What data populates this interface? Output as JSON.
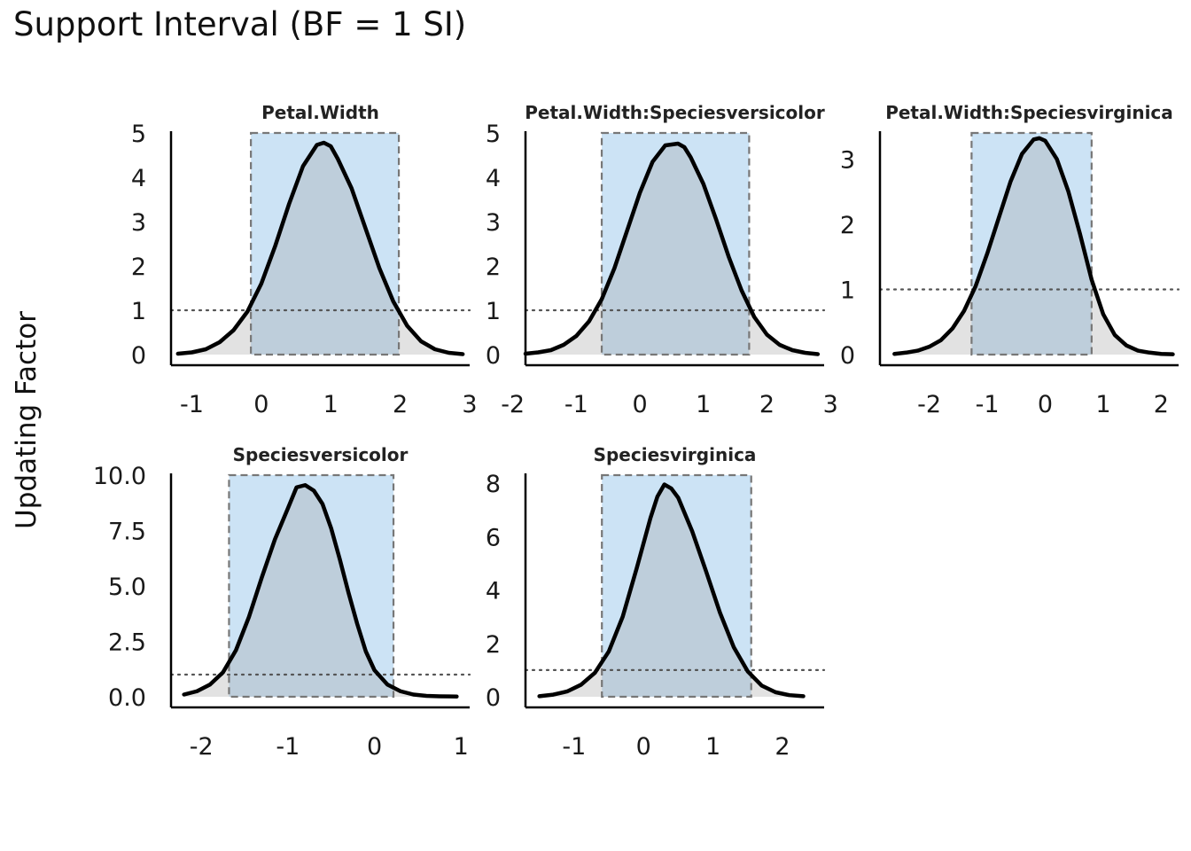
{
  "title": "Support Interval (BF = 1 SI)",
  "ylabel": "Updating Factor",
  "colors": {
    "interval_fill": "#cce3f5",
    "under_curve": "#9e9e9e",
    "curve": "#000000",
    "interval_border": "#777777",
    "reference_line": "#555555"
  },
  "chart_data": [
    {
      "type": "area",
      "title": "Petal.Width",
      "support_interval": [
        -0.15,
        1.98
      ],
      "reference_y": 1,
      "xlim": [
        -1.3,
        3.0
      ],
      "ylim": [
        0,
        5
      ],
      "xticks": [
        -1,
        0,
        1,
        2,
        3
      ],
      "xtick_labels": [
        "-1",
        "0",
        "1",
        "2",
        "3"
      ],
      "yticks": [
        0,
        1,
        2,
        3,
        4,
        5
      ],
      "ytick_labels": [
        "0",
        "1",
        "2",
        "3",
        "4",
        "5"
      ],
      "x": [
        -1.2,
        -1.0,
        -0.8,
        -0.6,
        -0.4,
        -0.2,
        0.0,
        0.2,
        0.4,
        0.6,
        0.8,
        0.9,
        1.0,
        1.1,
        1.3,
        1.5,
        1.7,
        1.9,
        2.1,
        2.3,
        2.5,
        2.7,
        2.9
      ],
      "y": [
        0.02,
        0.05,
        0.12,
        0.28,
        0.55,
        0.97,
        1.6,
        2.45,
        3.4,
        4.25,
        4.73,
        4.78,
        4.7,
        4.42,
        3.75,
        2.85,
        1.95,
        1.2,
        0.65,
        0.3,
        0.12,
        0.04,
        0.01
      ]
    },
    {
      "type": "area",
      "title": "Petal.Width:Speciesversicolor",
      "support_interval": [
        -0.6,
        1.72
      ],
      "reference_y": 1,
      "xlim": [
        -1.8,
        2.9
      ],
      "ylim": [
        0,
        5
      ],
      "xticks": [
        -2,
        -1,
        0,
        1,
        2,
        3
      ],
      "xtick_labels": [
        "-2",
        "-1",
        "0",
        "1",
        "2",
        "3"
      ],
      "yticks": [
        0,
        1,
        2,
        3,
        4,
        5
      ],
      "ytick_labels": [
        "0",
        "1",
        "2",
        "3",
        "4",
        "5"
      ],
      "x": [
        -1.8,
        -1.6,
        -1.4,
        -1.2,
        -1.0,
        -0.8,
        -0.6,
        -0.4,
        -0.2,
        0.0,
        0.2,
        0.4,
        0.6,
        0.7,
        0.8,
        1.0,
        1.2,
        1.4,
        1.6,
        1.8,
        2.0,
        2.2,
        2.4,
        2.6,
        2.8
      ],
      "y": [
        0.02,
        0.05,
        0.1,
        0.22,
        0.42,
        0.75,
        1.25,
        1.95,
        2.8,
        3.65,
        4.35,
        4.72,
        4.76,
        4.68,
        4.45,
        3.85,
        3.05,
        2.2,
        1.45,
        0.85,
        0.45,
        0.22,
        0.1,
        0.04,
        0.01
      ]
    },
    {
      "type": "area",
      "title": "Petal.Width:Speciesvirginica",
      "support_interval": [
        -1.27,
        0.8
      ],
      "reference_y": 1,
      "xlim": [
        -2.85,
        2.3
      ],
      "ylim": [
        0,
        3.4
      ],
      "xticks": [
        -2,
        -1,
        0,
        1,
        2
      ],
      "xtick_labels": [
        "-2",
        "-1",
        "0",
        "1",
        "2"
      ],
      "yticks": [
        0,
        1,
        2,
        3
      ],
      "ytick_labels": [
        "0",
        "1",
        "2",
        "3"
      ],
      "x": [
        -2.6,
        -2.4,
        -2.2,
        -2.0,
        -1.8,
        -1.6,
        -1.4,
        -1.2,
        -1.0,
        -0.8,
        -0.6,
        -0.4,
        -0.2,
        -0.1,
        0.0,
        0.2,
        0.4,
        0.6,
        0.8,
        1.0,
        1.2,
        1.4,
        1.6,
        1.8,
        2.0,
        2.2
      ],
      "y": [
        0.01,
        0.03,
        0.06,
        0.12,
        0.22,
        0.4,
        0.67,
        1.05,
        1.55,
        2.1,
        2.65,
        3.08,
        3.3,
        3.32,
        3.28,
        3.0,
        2.5,
        1.85,
        1.15,
        0.62,
        0.3,
        0.14,
        0.06,
        0.03,
        0.01,
        0.005
      ]
    },
    {
      "type": "area",
      "title": "Speciesversicolor",
      "support_interval": [
        -1.68,
        0.22
      ],
      "reference_y": 1,
      "xlim": [
        -2.35,
        1.1
      ],
      "ylim": [
        0,
        10
      ],
      "xticks": [
        -2,
        -1,
        0,
        1
      ],
      "xtick_labels": [
        "-2",
        "-1",
        "0",
        "1"
      ],
      "yticks": [
        0,
        2.5,
        5,
        7.5,
        10
      ],
      "ytick_labels": [
        "0.0",
        "2.5",
        "5.0",
        "7.5",
        "10.0"
      ],
      "x": [
        -2.2,
        -2.05,
        -1.9,
        -1.75,
        -1.6,
        -1.45,
        -1.3,
        -1.15,
        -1.0,
        -0.9,
        -0.8,
        -0.7,
        -0.6,
        -0.5,
        -0.4,
        -0.3,
        -0.2,
        -0.1,
        0.0,
        0.15,
        0.3,
        0.45,
        0.6,
        0.75,
        0.95
      ],
      "y": [
        0.1,
        0.25,
        0.55,
        1.1,
        2.1,
        3.6,
        5.4,
        7.1,
        8.5,
        9.45,
        9.55,
        9.3,
        8.7,
        7.6,
        6.2,
        4.7,
        3.3,
        2.05,
        1.2,
        0.55,
        0.25,
        0.1,
        0.04,
        0.02,
        0.01
      ]
    },
    {
      "type": "area",
      "title": "Speciesvirginica",
      "support_interval": [
        -0.6,
        1.55
      ],
      "reference_y": 1,
      "xlim": [
        -1.7,
        2.6
      ],
      "ylim": [
        0,
        8.3
      ],
      "xticks": [
        -1,
        0,
        1,
        2
      ],
      "xtick_labels": [
        "-1",
        "0",
        "1",
        "2"
      ],
      "yticks": [
        0,
        2,
        4,
        6,
        8
      ],
      "ytick_labels": [
        "0",
        "2",
        "4",
        "6",
        "8"
      ],
      "x": [
        -1.5,
        -1.3,
        -1.1,
        -0.9,
        -0.7,
        -0.5,
        -0.3,
        -0.1,
        0.1,
        0.2,
        0.3,
        0.4,
        0.5,
        0.7,
        0.9,
        1.1,
        1.3,
        1.5,
        1.7,
        1.9,
        2.1,
        2.3
      ],
      "y": [
        0.02,
        0.08,
        0.2,
        0.45,
        0.9,
        1.7,
        3.0,
        4.8,
        6.7,
        7.5,
        7.95,
        7.8,
        7.45,
        6.2,
        4.7,
        3.15,
        1.85,
        0.95,
        0.42,
        0.17,
        0.06,
        0.02
      ]
    }
  ]
}
